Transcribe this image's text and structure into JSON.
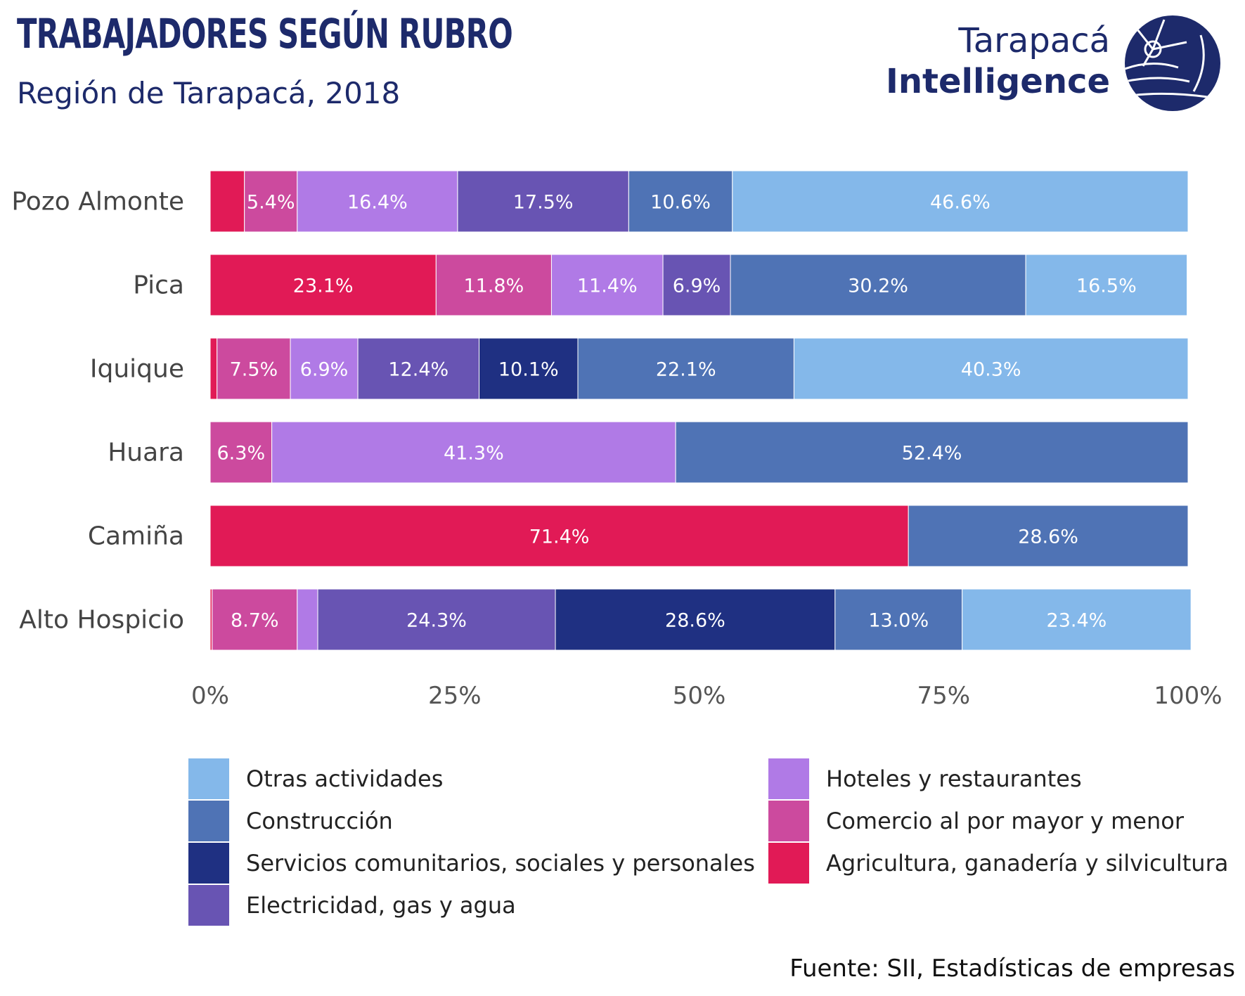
{
  "header": {
    "title": "TRABAJADORES SEGÚN RUBRO",
    "subtitle": "Región de Tarapacá, 2018"
  },
  "brand": {
    "line1": "Tarapacá",
    "line2": "Intelligence",
    "logo_icon": "tarapaca-intelligence-logo",
    "color": "#1d2a6b"
  },
  "source": "Fuente: SII, Estadísticas de empresas",
  "chart_data": {
    "type": "bar",
    "orientation": "horizontal",
    "stacked": true,
    "normalized": true,
    "categories": [
      "Pozo Almonte",
      "Pica",
      "Iquique",
      "Huara",
      "Camiña",
      "Alto Hospicio"
    ],
    "series": [
      {
        "name": "Agricultura, ganadería y silvicultura",
        "color": "#e11a56",
        "values": [
          3.5,
          23.1,
          0.7,
          0.0,
          71.4,
          0.2
        ],
        "labels": [
          "",
          "23.1%",
          "",
          "",
          "71.4%",
          ""
        ]
      },
      {
        "name": "Comercio al por mayor y menor",
        "color": "#cc4a9e",
        "values": [
          5.4,
          11.8,
          7.5,
          6.3,
          0.0,
          8.7
        ],
        "labels": [
          "5.4%",
          "11.8%",
          "7.5%",
          "6.3%",
          "",
          "8.7%"
        ]
      },
      {
        "name": "Hoteles y restaurantes",
        "color": "#b07ae6",
        "values": [
          16.4,
          11.4,
          6.9,
          41.3,
          0.0,
          2.1
        ],
        "labels": [
          "16.4%",
          "11.4%",
          "6.9%",
          "41.3%",
          "",
          ""
        ]
      },
      {
        "name": "Electricidad, gas y agua",
        "color": "#6854b3",
        "values": [
          17.5,
          6.9,
          12.4,
          0.0,
          0.0,
          24.3
        ],
        "labels": [
          "17.5%",
          "6.9%",
          "12.4%",
          "",
          "",
          "24.3%"
        ]
      },
      {
        "name": "Servicios comunitarios, sociales y personales",
        "color": "#1f3082",
        "values": [
          0.0,
          0.0,
          10.1,
          0.0,
          0.0,
          28.6
        ],
        "labels": [
          "",
          "",
          "10.1%",
          "",
          "",
          "28.6%"
        ]
      },
      {
        "name": "Construcción",
        "color": "#4f73b5",
        "values": [
          10.6,
          30.2,
          22.1,
          52.4,
          28.6,
          13.0
        ],
        "labels": [
          "10.6%",
          "30.2%",
          "22.1%",
          "52.4%",
          "28.6%",
          "13.0%"
        ]
      },
      {
        "name": "Otras actividades",
        "color": "#84b8ea",
        "values": [
          46.6,
          16.5,
          40.3,
          0.0,
          0.0,
          23.4
        ],
        "labels": [
          "46.6%",
          "16.5%",
          "40.3%",
          "",
          "",
          "23.4%"
        ]
      }
    ],
    "x_ticks": [
      "0%",
      "25%",
      "50%",
      "75%",
      "100%"
    ],
    "xlim": [
      0,
      100
    ],
    "grid": false,
    "legend": {
      "placement": "bottom",
      "order": [
        "Otras actividades",
        "Hoteles y restaurantes",
        "Construcción",
        "Comercio al por mayor y menor",
        "Servicios comunitarios, sociales y personales",
        "Agricultura, ganadería y silvicultura",
        "Electricidad, gas y agua"
      ]
    },
    "xlabel": "",
    "ylabel": ""
  }
}
